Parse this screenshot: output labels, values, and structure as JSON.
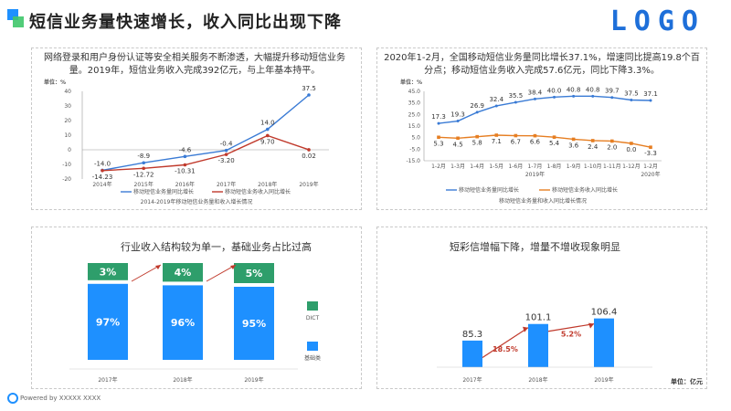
{
  "header": {
    "title": "短信业务量快速增长，收入同比出现下降",
    "logo": "LOGO"
  },
  "top_left": {
    "description": "网络登录和用户身份认证等安全相关服务不断渗透，大幅提升移动短信业务量。2019年，短信业务收入完成392亿元，与上年基本持平。",
    "unit_label": "单位：%",
    "caption": "2014-2019年移动短信业务量和收入增长情况",
    "legend_volume": "移动短信业务量同比增长",
    "legend_revenue": "移动短信业务收入同比增长"
  },
  "top_right": {
    "description": "2020年1-2月，全国移动短信业务量同比增长37.1%，增速同比提高19.8个百分点；移动短信业务收入完成57.6亿元，同比下降3.3%。",
    "unit_label": "单位：%",
    "caption": "移动短信业务量和收入同比增长情况",
    "legend_volume": "移动短信业务量同比增长",
    "legend_revenue": "移动短信业务收入同比增长",
    "year_2019": "2019年",
    "year_2020": "2020年"
  },
  "bottom_left": {
    "title": "行业收入结构较为单一，基础业务占比过高",
    "legend_dict": "DICT",
    "legend_basic": "基础类"
  },
  "bottom_right": {
    "title": "短彩信增幅下降，增量不增收现象明显",
    "unit": "单位：亿元"
  },
  "footer": {
    "text": "Powered by XXXXX XXXX"
  },
  "colors": {
    "blue": "#1e90ff",
    "line_blue": "#3a7bd5",
    "line_red": "#c0392b",
    "green": "#2e9e6b",
    "orange": "#e67e22",
    "arrow_red": "#c0392b"
  },
  "chart_data": [
    {
      "type": "line",
      "title": "2014-2019年移动短信业务量和收入增长情况",
      "ylabel": "单位：%",
      "ylim": [
        -20,
        40
      ],
      "yticks": [
        40,
        30,
        20,
        10,
        0,
        -10,
        -20
      ],
      "categories": [
        "2014年",
        "2015年",
        "2016年",
        "2017年",
        "2018年",
        "2019年"
      ],
      "series": [
        {
          "name": "移动短信业务量同比增长",
          "values": [
            -14.0,
            -8.9,
            -4.6,
            -0.4,
            14.0,
            37.5
          ],
          "labels": [
            "-14.0",
            "-8.9",
            "-4.6",
            "-0.4",
            "14.0",
            "37.5"
          ]
        },
        {
          "name": "移动短信业务收入同比增长",
          "values": [
            -14.23,
            -12.72,
            -10.31,
            -3.2,
            9.7,
            0.02
          ],
          "labels": [
            "-14.23",
            "-12.72",
            "-10.31",
            "-3.20",
            "9.70",
            "0.02"
          ]
        }
      ]
    },
    {
      "type": "line",
      "title": "移动短信业务量和收入同比增长情况",
      "ylabel": "单位：%",
      "ylim": [
        -15,
        45
      ],
      "yticks": [
        "45.0",
        "35.0",
        "25.0",
        "15.0",
        "5.0",
        "-5.0",
        "-15.0"
      ],
      "categories": [
        "1-2月",
        "1-3月",
        "1-4月",
        "1-5月",
        "1-6月",
        "1-7月",
        "1-8月",
        "1-9月",
        "1-10月",
        "1-11月",
        "1-12月",
        "1-2月"
      ],
      "series": [
        {
          "name": "移动短信业务量同比增长",
          "values": [
            17.3,
            19.3,
            26.9,
            32.4,
            35.5,
            38.4,
            40.0,
            40.8,
            40.8,
            39.7,
            37.5,
            37.1
          ],
          "labels": [
            "17.3",
            "19.3",
            "26.9",
            "32.4",
            "35.5",
            "38.4",
            "40.0",
            "40.8",
            "40.8",
            "39.7",
            "37.5",
            "37.1"
          ]
        },
        {
          "name": "移动短信业务收入同比增长",
          "values": [
            5.3,
            4.5,
            5.8,
            7.1,
            6.7,
            6.6,
            5.4,
            3.6,
            2.4,
            2.0,
            0.0,
            -3.3
          ],
          "labels": [
            "5.3",
            "4.5",
            "5.8",
            "7.1",
            "6.7",
            "6.6",
            "5.4",
            "3.6",
            "2.4",
            "2.0",
            "0.0",
            "-3.3"
          ]
        }
      ]
    },
    {
      "type": "bar",
      "stacked": true,
      "title": "行业收入结构较为单一，基础业务占比过高",
      "categories": [
        "2017年",
        "2018年",
        "2019年"
      ],
      "series": [
        {
          "name": "基础类",
          "values": [
            97,
            96,
            95
          ],
          "labels": [
            "97%",
            "96%",
            "95%"
          ]
        },
        {
          "name": "DICT",
          "values": [
            3,
            4,
            5
          ],
          "labels": [
            "3%",
            "4%",
            "5%"
          ]
        }
      ]
    },
    {
      "type": "bar",
      "title": "短彩信增幅下降，增量不增收现象明显",
      "ylabel": "单位：亿元",
      "categories": [
        "2017年",
        "2018年",
        "2019年"
      ],
      "values": [
        85.3,
        101.1,
        106.4
      ],
      "labels": [
        "85.3",
        "101.1",
        "106.4"
      ],
      "growth_labels": [
        "18.5%",
        "5.2%"
      ]
    }
  ]
}
